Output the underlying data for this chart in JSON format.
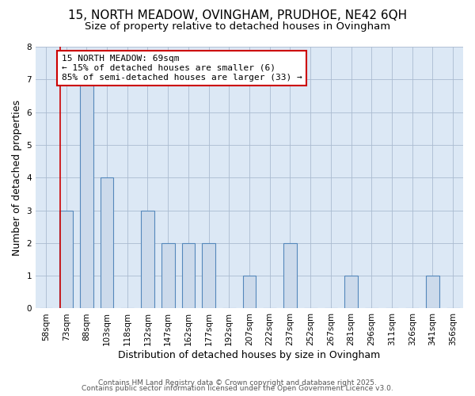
{
  "title": "15, NORTH MEADOW, OVINGHAM, PRUDHOE, NE42 6QH",
  "subtitle": "Size of property relative to detached houses in Ovingham",
  "xlabel": "Distribution of detached houses by size in Ovingham",
  "ylabel": "Number of detached properties",
  "footer_line1": "Contains HM Land Registry data © Crown copyright and database right 2025.",
  "footer_line2": "Contains public sector information licensed under the Open Government Licence v3.0.",
  "bin_labels": [
    "58sqm",
    "73sqm",
    "88sqm",
    "103sqm",
    "118sqm",
    "132sqm",
    "147sqm",
    "162sqm",
    "177sqm",
    "192sqm",
    "207sqm",
    "222sqm",
    "237sqm",
    "252sqm",
    "267sqm",
    "281sqm",
    "296sqm",
    "311sqm",
    "326sqm",
    "341sqm",
    "356sqm"
  ],
  "bar_values": [
    0,
    3,
    7,
    4,
    0,
    3,
    2,
    2,
    2,
    0,
    1,
    0,
    2,
    0,
    0,
    1,
    0,
    0,
    0,
    1,
    0
  ],
  "bar_color": "#ccdaeb",
  "bar_edgecolor": "#5588bb",
  "annotation_text": "15 NORTH MEADOW: 69sqm\n← 15% of detached houses are smaller (6)\n85% of semi-detached houses are larger (33) →",
  "annotation_box_edgecolor": "#cc0000",
  "vline_color": "#cc0000",
  "vline_x": 0.72,
  "ylim": [
    0,
    8
  ],
  "yticks": [
    0,
    1,
    2,
    3,
    4,
    5,
    6,
    7,
    8
  ],
  "plot_bg_color": "#dce8f5",
  "background_color": "#ffffff",
  "grid_color": "#aabbd0",
  "title_fontsize": 11,
  "subtitle_fontsize": 9.5,
  "axis_label_fontsize": 9,
  "tick_fontsize": 7.5,
  "annotation_fontsize": 8,
  "footer_fontsize": 6.5
}
